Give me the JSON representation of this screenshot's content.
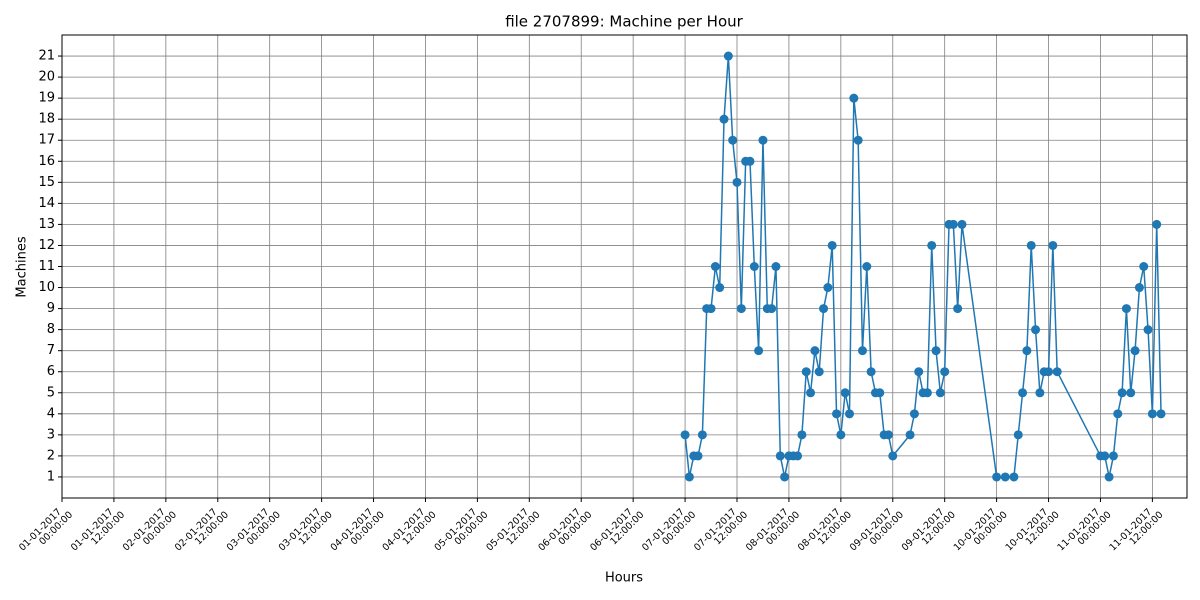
{
  "chart_data": {
    "type": "line",
    "title": "file 2707899: Machine per Hour",
    "x_label": "Hours",
    "y_label": "Machines",
    "color": "#1f77b4",
    "grid": true,
    "xlim": [
      "01-01-2017 00:00:00",
      "11-01-2017 20:00:00"
    ],
    "xticks": [
      "01-01-2017 00:00:00",
      "01-01-2017 12:00:00",
      "02-01-2017 00:00:00",
      "02-01-2017 12:00:00",
      "03-01-2017 00:00:00",
      "03-01-2017 12:00:00",
      "04-01-2017 00:00:00",
      "04-01-2017 12:00:00",
      "05-01-2017 00:00:00",
      "05-01-2017 12:00:00",
      "06-01-2017 00:00:00",
      "06-01-2017 12:00:00",
      "07-01-2017 00:00:00",
      "07-01-2017 12:00:00",
      "08-01-2017 00:00:00",
      "08-01-2017 12:00:00",
      "09-01-2017 00:00:00",
      "09-01-2017 12:00:00",
      "10-01-2017 00:00:00",
      "10-01-2017 12:00:00",
      "11-01-2017 00:00:00",
      "11-01-2017 12:00:00"
    ],
    "ylim": [
      0,
      22
    ],
    "yticks": [
      1,
      2,
      3,
      4,
      5,
      6,
      7,
      8,
      9,
      10,
      11,
      12,
      13,
      14,
      15,
      16,
      17,
      18,
      19,
      20,
      21
    ],
    "x": [
      "07-01-2017 00:00:00",
      "07-01-2017 01:00:00",
      "07-01-2017 02:00:00",
      "07-01-2017 03:00:00",
      "07-01-2017 04:00:00",
      "07-01-2017 05:00:00",
      "07-01-2017 06:00:00",
      "07-01-2017 07:00:00",
      "07-01-2017 08:00:00",
      "07-01-2017 09:00:00",
      "07-01-2017 10:00:00",
      "07-01-2017 11:00:00",
      "07-01-2017 12:00:00",
      "07-01-2017 13:00:00",
      "07-01-2017 14:00:00",
      "07-01-2017 15:00:00",
      "07-01-2017 16:00:00",
      "07-01-2017 17:00:00",
      "07-01-2017 18:00:00",
      "07-01-2017 19:00:00",
      "07-01-2017 20:00:00",
      "07-01-2017 21:00:00",
      "07-01-2017 22:00:00",
      "07-01-2017 23:00:00",
      "08-01-2017 00:00:00",
      "08-01-2017 01:00:00",
      "08-01-2017 02:00:00",
      "08-01-2017 03:00:00",
      "08-01-2017 04:00:00",
      "08-01-2017 05:00:00",
      "08-01-2017 06:00:00",
      "08-01-2017 07:00:00",
      "08-01-2017 08:00:00",
      "08-01-2017 09:00:00",
      "08-01-2017 10:00:00",
      "08-01-2017 11:00:00",
      "08-01-2017 12:00:00",
      "08-01-2017 13:00:00",
      "08-01-2017 14:00:00",
      "08-01-2017 15:00:00",
      "08-01-2017 16:00:00",
      "08-01-2017 17:00:00",
      "08-01-2017 18:00:00",
      "08-01-2017 19:00:00",
      "08-01-2017 20:00:00",
      "08-01-2017 21:00:00",
      "08-01-2017 22:00:00",
      "08-01-2017 23:00:00",
      "09-01-2017 00:00:00",
      "09-01-2017 04:00:00",
      "09-01-2017 05:00:00",
      "09-01-2017 06:00:00",
      "09-01-2017 07:00:00",
      "09-01-2017 08:00:00",
      "09-01-2017 09:00:00",
      "09-01-2017 10:00:00",
      "09-01-2017 11:00:00",
      "09-01-2017 12:00:00",
      "09-01-2017 13:00:00",
      "09-01-2017 14:00:00",
      "09-01-2017 15:00:00",
      "09-01-2017 16:00:00",
      "10-01-2017 00:00:00",
      "10-01-2017 02:00:00",
      "10-01-2017 04:00:00",
      "10-01-2017 05:00:00",
      "10-01-2017 06:00:00",
      "10-01-2017 07:00:00",
      "10-01-2017 08:00:00",
      "10-01-2017 09:00:00",
      "10-01-2017 10:00:00",
      "10-01-2017 11:00:00",
      "10-01-2017 12:00:00",
      "10-01-2017 13:00:00",
      "10-01-2017 14:00:00",
      "11-01-2017 00:00:00",
      "11-01-2017 01:00:00",
      "11-01-2017 02:00:00",
      "11-01-2017 03:00:00",
      "11-01-2017 04:00:00",
      "11-01-2017 05:00:00",
      "11-01-2017 06:00:00",
      "11-01-2017 07:00:00",
      "11-01-2017 08:00:00",
      "11-01-2017 09:00:00",
      "11-01-2017 10:00:00",
      "11-01-2017 11:00:00",
      "11-01-2017 12:00:00",
      "11-01-2017 13:00:00",
      "11-01-2017 14:00:00"
    ],
    "values": [
      3,
      1,
      2,
      2,
      3,
      9,
      9,
      11,
      10,
      18,
      21,
      17,
      15,
      9,
      16,
      16,
      11,
      7,
      17,
      9,
      9,
      11,
      2,
      1,
      2,
      2,
      2,
      3,
      6,
      5,
      7,
      6,
      9,
      10,
      12,
      4,
      3,
      5,
      4,
      19,
      17,
      7,
      11,
      6,
      5,
      5,
      3,
      3,
      2,
      3,
      4,
      6,
      5,
      5,
      12,
      7,
      5,
      6,
      13,
      13,
      9,
      13,
      1,
      1,
      1,
      3,
      5,
      7,
      12,
      8,
      5,
      6,
      6,
      12,
      6,
      2,
      2,
      1,
      2,
      4,
      5,
      9,
      5,
      7,
      10,
      11,
      8,
      4,
      13,
      4
    ]
  }
}
